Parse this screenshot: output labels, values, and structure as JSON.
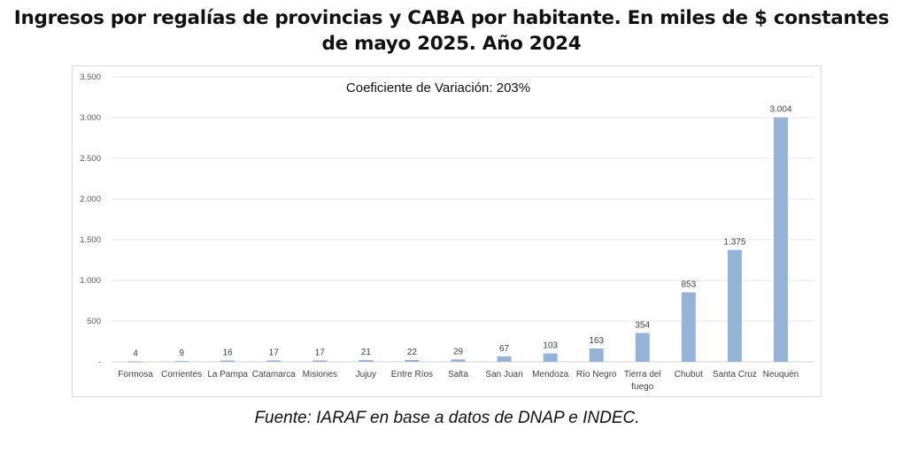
{
  "title": "Ingresos por regalías de provincias y CABA por habitante. En miles de $ constantes de mayo 2025. Año 2024",
  "source": "Fuente: IARAF en base a datos de DNAP e INDEC.",
  "chart_data": {
    "type": "bar",
    "title": "Ingresos por regalías de provincias y CABA por habitante. En miles de $ constantes de mayo 2025. Año 2024",
    "annotation": "Coeficiente de Variación: 203%",
    "categories": [
      "Formosa",
      "Corrientes",
      "La Pampa",
      "Catamarca",
      "Misiones",
      "Jujuy",
      "Entre Ríos",
      "Salta",
      "San Juan",
      "Mendoza",
      "Río Negro",
      "Tierra del fuego",
      "Chubut",
      "Santa Cruz",
      "Neuquén"
    ],
    "values": [
      4,
      9,
      16,
      17,
      17,
      21,
      22,
      29,
      67,
      103,
      163,
      354,
      853,
      1375,
      3004
    ],
    "data_labels": [
      "4",
      "9",
      "16",
      "17",
      "17",
      "21",
      "22",
      "29",
      "67",
      "103",
      "163",
      "354",
      "853",
      "1.375",
      "3.004"
    ],
    "ylim": [
      0,
      3500
    ],
    "yticks": [
      0,
      500,
      1000,
      1500,
      2000,
      2500,
      3000,
      3500
    ],
    "ytick_labels": [
      "-",
      "500",
      "1.000",
      "1.500",
      "2.000",
      "2.500",
      "3.000",
      "3.500"
    ],
    "grid": true,
    "legend": "none",
    "bar_color": "#95b3d7",
    "xlabel": "",
    "ylabel": ""
  }
}
